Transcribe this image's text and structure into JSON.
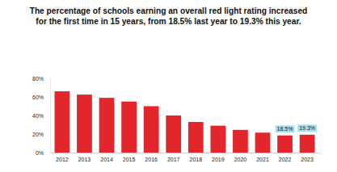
{
  "chart_data": {
    "type": "bar",
    "title": [
      "The percentage of schools earning an overall red light rating increased",
      "for the first time in 15 years, from 18.5% last year to 19.3% this year."
    ],
    "categories": [
      "2012",
      "2013",
      "2014",
      "2015",
      "2016",
      "2017",
      "2018",
      "2019",
      "2020",
      "2021",
      "2022",
      "2023"
    ],
    "values": [
      66,
      62.5,
      59,
      55,
      50,
      40,
      33,
      29,
      24.5,
      21.5,
      18.5,
      19.3
    ],
    "value_labels": [
      null,
      null,
      null,
      null,
      null,
      null,
      null,
      null,
      null,
      null,
      "18.5%",
      "19.3%"
    ],
    "data_labels": true,
    "color": "#e3262c",
    "ylim": [
      0,
      80
    ],
    "yticks": [
      {
        "value": 0,
        "label": "0%"
      },
      {
        "value": 20,
        "label": "20%"
      },
      {
        "value": 40,
        "label": "40%"
      },
      {
        "value": 60,
        "label": "60%"
      },
      {
        "value": 80,
        "label": "80%"
      }
    ],
    "grid": false
  }
}
